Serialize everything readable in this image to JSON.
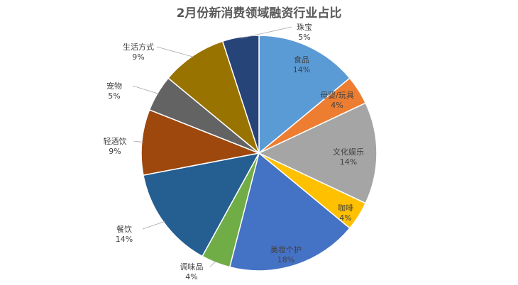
{
  "chart_data": {
    "type": "pie",
    "title": "2月份新消费领域融资行业占比",
    "slices": [
      {
        "label": "食品",
        "percent_label": "14%",
        "value": 14,
        "color": "#5b9bd5"
      },
      {
        "label": "母婴/玩具",
        "percent_label": "4%",
        "value": 4,
        "color": "#ed7d31"
      },
      {
        "label": "文化娱乐",
        "percent_label": "14%",
        "value": 14,
        "color": "#a5a5a5"
      },
      {
        "label": "咖啡",
        "percent_label": "4%",
        "value": 4,
        "color": "#ffc000"
      },
      {
        "label": "美妆个护",
        "percent_label": "18%",
        "value": 18,
        "color": "#4472c4"
      },
      {
        "label": "调味品",
        "percent_label": "4%",
        "value": 4,
        "color": "#70ad47"
      },
      {
        "label": "餐饮",
        "percent_label": "14%",
        "value": 14,
        "color": "#255e91"
      },
      {
        "label": "轻酒饮",
        "percent_label": "9%",
        "value": 9,
        "color": "#9e480e"
      },
      {
        "label": "宠物",
        "percent_label": "5%",
        "value": 5,
        "color": "#636363"
      },
      {
        "label": "生活方式",
        "percent_label": "9%",
        "value": 9,
        "color": "#997300"
      },
      {
        "label": "珠宝",
        "percent_label": "5%",
        "value": 5,
        "color": "#264478"
      }
    ]
  }
}
